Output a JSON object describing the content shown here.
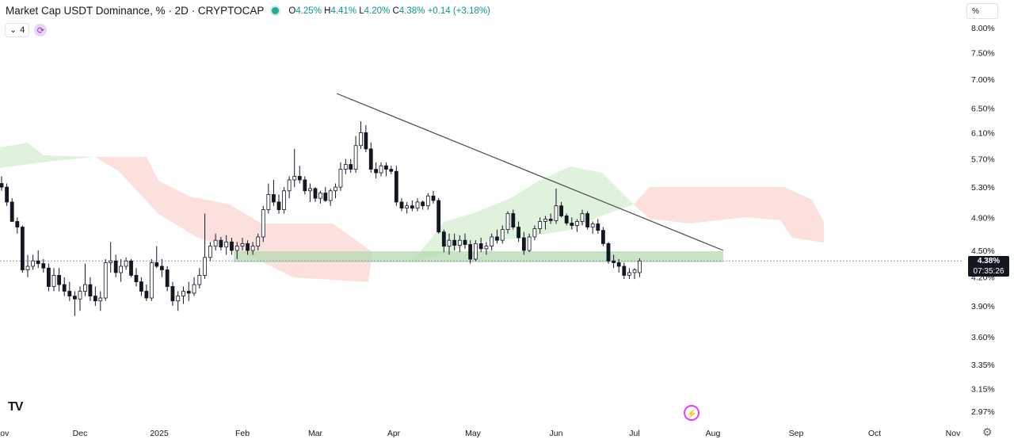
{
  "header": {
    "title": "Market Cap USDT Dominance, % · 2D · CRYPTOCAP",
    "open_label": "O",
    "open": "4.25%",
    "high_label": "H",
    "high": "4.41%",
    "low_label": "L",
    "low": "4.20%",
    "close_label": "C",
    "close": "4.38%",
    "change": "+0.14 (+3.18%)",
    "status_color": "#22ab94"
  },
  "indicators": {
    "collapse_count": "4",
    "collapse_icon": "chevron-down-icon",
    "refresh_icon": "refresh-icon"
  },
  "scale_button": "%",
  "price_label": {
    "value": "4.38%",
    "countdown": "07:35:26"
  },
  "logo_text": "TV",
  "colors": {
    "up": "#ffffff",
    "down": "#131722",
    "cloud_green": "#dff2dc",
    "cloud_red": "#fbe0de",
    "zone": "#b5d9b2",
    "trendline": "#4a4a4a"
  },
  "chart_data": {
    "type": "candlestick",
    "title": "Market Cap USDT Dominance, % · 2D · CRYPTOCAP",
    "y_scale": "log",
    "y_ticks": [
      "8.00%",
      "7.50%",
      "7.00%",
      "6.50%",
      "6.10%",
      "5.70%",
      "5.30%",
      "4.90%",
      "4.50%",
      "4.20%",
      "3.90%",
      "3.60%",
      "3.35%",
      "3.15%",
      "2.97%"
    ],
    "y_tick_values": [
      8.0,
      7.5,
      7.0,
      6.5,
      6.1,
      5.7,
      5.3,
      4.9,
      4.5,
      4.2,
      3.9,
      3.6,
      3.35,
      3.15,
      2.97
    ],
    "x_ticks": [
      "Nov",
      "Dec",
      "2025",
      "Feb",
      "Mar",
      "Apr",
      "May",
      "Jun",
      "Jul",
      "Aug",
      "Sep",
      "Oct",
      "Nov"
    ],
    "x_tick_dates": [
      "2024-11-01",
      "2024-12-01",
      "2025-01-01",
      "2025-02-01",
      "2025-03-01",
      "2025-04-01",
      "2025-05-01",
      "2025-06-01",
      "2025-07-01",
      "2025-08-01",
      "2025-09-01",
      "2025-10-01",
      "2025-11-01"
    ],
    "last_close": 4.38,
    "horizontal_line": 4.38,
    "candles_start_date": "2024-11-01",
    "candle_interval_days": 2,
    "candles": [
      [
        5.35,
        5.45,
        5.25,
        5.3
      ],
      [
        5.3,
        5.35,
        5.05,
        5.1
      ],
      [
        5.1,
        5.15,
        4.85,
        4.85
      ],
      [
        4.85,
        4.9,
        4.7,
        4.78
      ],
      [
        4.78,
        4.8,
        4.25,
        4.28
      ],
      [
        4.28,
        4.45,
        4.2,
        4.32
      ],
      [
        4.32,
        4.45,
        4.28,
        4.38
      ],
      [
        4.38,
        4.5,
        4.3,
        4.35
      ],
      [
        4.35,
        4.4,
        4.25,
        4.3
      ],
      [
        4.3,
        4.35,
        4.05,
        4.1
      ],
      [
        4.1,
        4.3,
        4.05,
        4.22
      ],
      [
        4.22,
        4.3,
        4.05,
        4.12
      ],
      [
        4.12,
        4.2,
        4.0,
        4.05
      ],
      [
        4.05,
        4.15,
        3.95,
        4.0
      ],
      [
        4.0,
        4.05,
        3.8,
        3.97
      ],
      [
        3.97,
        4.1,
        3.85,
        4.05
      ],
      [
        4.05,
        4.35,
        4.0,
        4.12
      ],
      [
        4.12,
        4.2,
        3.95,
        4.0
      ],
      [
        4.0,
        4.1,
        3.9,
        3.95
      ],
      [
        3.95,
        4.05,
        3.85,
        3.98
      ],
      [
        3.98,
        4.4,
        3.95,
        4.36
      ],
      [
        4.36,
        4.6,
        4.25,
        4.38
      ],
      [
        4.38,
        4.45,
        4.2,
        4.25
      ],
      [
        4.25,
        4.4,
        4.15,
        4.32
      ],
      [
        4.32,
        4.42,
        4.28,
        4.38
      ],
      [
        4.38,
        4.4,
        4.2,
        4.22
      ],
      [
        4.22,
        4.3,
        4.1,
        4.15
      ],
      [
        4.15,
        4.2,
        4.0,
        4.05
      ],
      [
        4.05,
        4.12,
        3.95,
        3.98
      ],
      [
        3.98,
        4.4,
        3.95,
        4.36
      ],
      [
        4.36,
        4.55,
        4.3,
        4.32
      ],
      [
        4.32,
        4.4,
        4.2,
        4.28
      ],
      [
        4.28,
        4.32,
        4.05,
        4.1
      ],
      [
        4.1,
        4.15,
        3.9,
        3.95
      ],
      [
        3.95,
        4.05,
        3.85,
        4.0
      ],
      [
        4.0,
        4.1,
        3.92,
        4.05
      ],
      [
        4.05,
        4.15,
        3.95,
        4.03
      ],
      [
        4.03,
        4.2,
        4.0,
        4.12
      ],
      [
        4.12,
        4.3,
        4.08,
        4.22
      ],
      [
        4.22,
        4.95,
        4.18,
        4.42
      ],
      [
        4.42,
        4.6,
        4.38,
        4.55
      ],
      [
        4.55,
        4.7,
        4.5,
        4.62
      ],
      [
        4.62,
        4.66,
        4.5,
        4.54
      ],
      [
        4.54,
        4.68,
        4.45,
        4.6
      ],
      [
        4.6,
        4.65,
        4.45,
        4.5
      ],
      [
        4.5,
        4.6,
        4.4,
        4.55
      ],
      [
        4.55,
        4.65,
        4.5,
        4.58
      ],
      [
        4.58,
        4.62,
        4.45,
        4.5
      ],
      [
        4.5,
        4.6,
        4.45,
        4.55
      ],
      [
        4.55,
        4.7,
        4.5,
        4.66
      ],
      [
        4.66,
        5.05,
        4.6,
        5.0
      ],
      [
        5.0,
        5.35,
        4.95,
        5.2
      ],
      [
        5.2,
        5.4,
        5.05,
        5.1
      ],
      [
        5.1,
        5.2,
        4.95,
        5.0
      ],
      [
        5.0,
        5.3,
        4.95,
        5.25
      ],
      [
        5.25,
        5.45,
        5.15,
        5.4
      ],
      [
        5.4,
        5.85,
        5.3,
        5.45
      ],
      [
        5.45,
        5.6,
        5.35,
        5.4
      ],
      [
        5.4,
        5.45,
        5.2,
        5.25
      ],
      [
        5.25,
        5.35,
        5.1,
        5.28
      ],
      [
        5.28,
        5.3,
        5.1,
        5.15
      ],
      [
        5.15,
        5.25,
        5.08,
        5.22
      ],
      [
        5.22,
        5.3,
        5.1,
        5.12
      ],
      [
        5.12,
        5.28,
        5.05,
        5.25
      ],
      [
        5.25,
        5.35,
        5.15,
        5.3
      ],
      [
        5.3,
        5.65,
        5.25,
        5.55
      ],
      [
        5.55,
        5.7,
        5.48,
        5.62
      ],
      [
        5.62,
        5.7,
        5.5,
        5.55
      ],
      [
        5.55,
        6.05,
        5.5,
        5.9
      ],
      [
        5.9,
        6.28,
        5.85,
        6.1
      ],
      [
        6.1,
        6.22,
        5.8,
        5.85
      ],
      [
        5.85,
        5.95,
        5.5,
        5.55
      ],
      [
        5.55,
        5.65,
        5.42,
        5.5
      ],
      [
        5.5,
        5.65,
        5.45,
        5.6
      ],
      [
        5.6,
        5.65,
        5.45,
        5.55
      ],
      [
        5.55,
        5.6,
        5.48,
        5.52
      ],
      [
        5.52,
        5.6,
        5.05,
        5.1
      ],
      [
        5.1,
        5.15,
        4.98,
        5.02
      ],
      [
        5.02,
        5.1,
        4.95,
        5.05
      ],
      [
        5.05,
        5.12,
        4.98,
        5.02
      ],
      [
        5.02,
        5.15,
        4.98,
        5.1
      ],
      [
        5.1,
        5.12,
        5.0,
        5.05
      ],
      [
        5.05,
        5.22,
        5.0,
        5.18
      ],
      [
        5.18,
        5.25,
        5.08,
        5.12
      ],
      [
        5.12,
        5.15,
        4.7,
        4.72
      ],
      [
        4.72,
        4.75,
        4.48,
        4.55
      ],
      [
        4.55,
        4.7,
        4.45,
        4.62
      ],
      [
        4.62,
        4.7,
        4.5,
        4.56
      ],
      [
        4.56,
        4.68,
        4.48,
        4.62
      ],
      [
        4.62,
        4.7,
        4.52,
        4.57
      ],
      [
        4.57,
        4.62,
        4.35,
        4.4
      ],
      [
        4.4,
        4.62,
        4.38,
        4.58
      ],
      [
        4.58,
        4.65,
        4.48,
        4.52
      ],
      [
        4.52,
        4.6,
        4.45,
        4.55
      ],
      [
        4.55,
        4.7,
        4.5,
        4.66
      ],
      [
        4.66,
        4.75,
        4.58,
        4.62
      ],
      [
        4.62,
        4.8,
        4.58,
        4.75
      ],
      [
        4.75,
        4.98,
        4.7,
        4.95
      ],
      [
        4.95,
        5.0,
        4.75,
        4.78
      ],
      [
        4.78,
        4.85,
        4.6,
        4.65
      ],
      [
        4.65,
        4.72,
        4.45,
        4.5
      ],
      [
        4.5,
        4.7,
        4.48,
        4.66
      ],
      [
        4.66,
        4.8,
        4.62,
        4.76
      ],
      [
        4.76,
        4.9,
        4.7,
        4.85
      ],
      [
        4.85,
        4.92,
        4.75,
        4.88
      ],
      [
        4.88,
        4.95,
        4.82,
        4.86
      ],
      [
        4.86,
        5.28,
        4.82,
        5.05
      ],
      [
        5.05,
        5.1,
        4.9,
        4.92
      ],
      [
        4.92,
        4.95,
        4.8,
        4.83
      ],
      [
        4.83,
        4.9,
        4.75,
        4.8
      ],
      [
        4.8,
        4.88,
        4.72,
        4.85
      ],
      [
        4.85,
        5.0,
        4.8,
        4.95
      ],
      [
        4.95,
        4.98,
        4.75,
        4.78
      ],
      [
        4.78,
        4.85,
        4.7,
        4.82
      ],
      [
        4.82,
        4.88,
        4.7,
        4.74
      ],
      [
        4.74,
        4.78,
        4.55,
        4.58
      ],
      [
        4.58,
        4.6,
        4.35,
        4.38
      ],
      [
        4.38,
        4.45,
        4.3,
        4.36
      ],
      [
        4.36,
        4.4,
        4.25,
        4.32
      ],
      [
        4.32,
        4.36,
        4.18,
        4.22
      ],
      [
        4.22,
        4.3,
        4.18,
        4.25
      ],
      [
        4.25,
        4.3,
        4.18,
        4.28
      ],
      [
        4.25,
        4.41,
        4.2,
        4.38
      ]
    ]
  }
}
